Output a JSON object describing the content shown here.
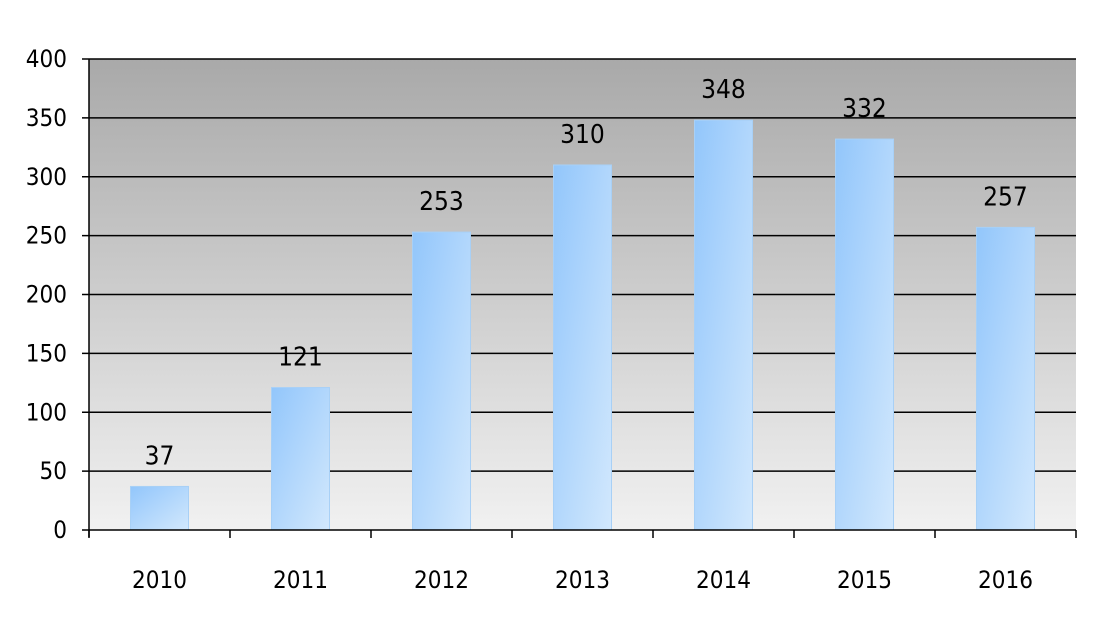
{
  "chart_data": {
    "type": "bar",
    "categories": [
      "2010",
      "2011",
      "2012",
      "2013",
      "2014",
      "2015",
      "2016"
    ],
    "values": [
      37,
      121,
      253,
      310,
      348,
      332,
      257
    ],
    "data_labels": [
      "37",
      "121",
      "253",
      "310",
      "348",
      "332",
      "257"
    ],
    "title": "",
    "xlabel": "",
    "ylabel": "",
    "ylim": [
      0,
      400
    ],
    "yticks": [
      0,
      50,
      100,
      150,
      200,
      250,
      300,
      350,
      400
    ],
    "ytick_labels": [
      "0",
      "50",
      "100",
      "150",
      "200",
      "250",
      "300",
      "350",
      "400"
    ],
    "grid": true,
    "legend": "none",
    "colors": {
      "bar_start": "#92c6fb",
      "bar_end": "#d2e8fd",
      "bar_edge": "#a8d0f6",
      "plot_bg_top": "#a9a9a9",
      "plot_bg_bottom": "#f1f1f1",
      "gridline": "#000000"
    }
  }
}
